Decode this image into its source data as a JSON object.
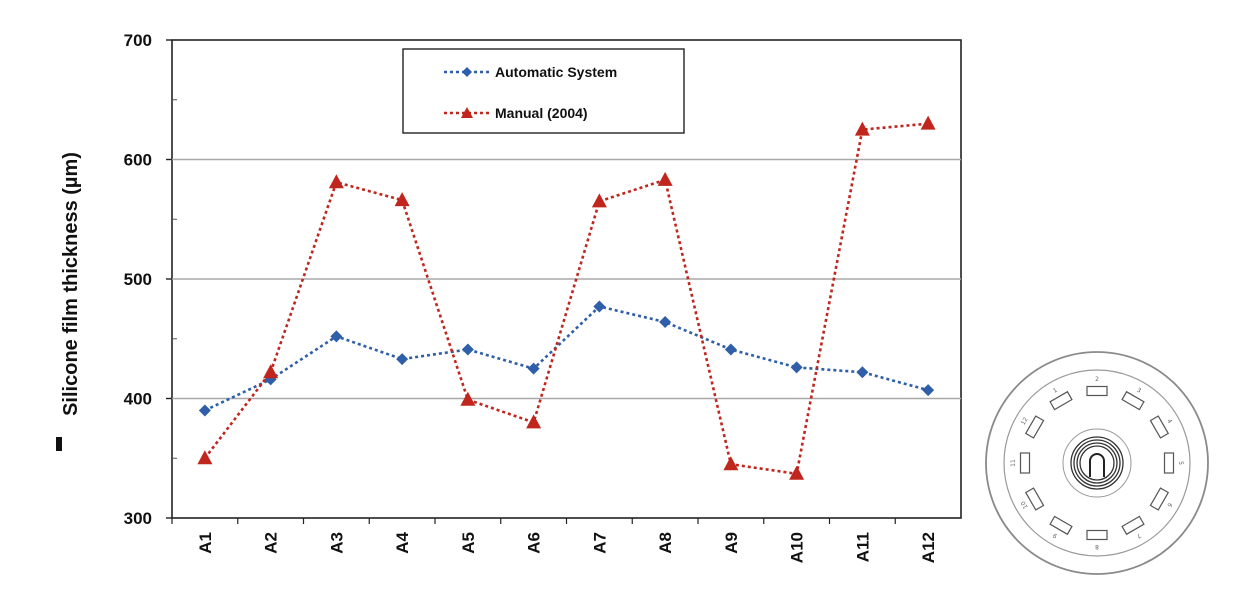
{
  "chart_data": {
    "type": "line",
    "ylabel": "Silicone film thickness (µm)",
    "xlabel": "",
    "ylim": [
      300,
      700
    ],
    "yticks": [
      300,
      400,
      500,
      600,
      700
    ],
    "categories": [
      "A1",
      "A2",
      "A3",
      "A4",
      "A5",
      "A6",
      "A7",
      "A8",
      "A9",
      "A10",
      "A11",
      "A12"
    ],
    "grid": true,
    "legend_position": "top-center",
    "series": [
      {
        "name": "Automatic System",
        "marker": "diamond",
        "line": "dotted",
        "color": "#2e5fa8",
        "values": [
          390,
          416,
          452,
          433,
          441,
          425,
          477,
          464,
          441,
          426,
          422,
          407
        ]
      },
      {
        "name": "Manual (2004)",
        "marker": "triangle",
        "line": "dotted",
        "color": "#c0261d",
        "values": [
          350,
          422,
          581,
          566,
          399,
          380,
          565,
          583,
          345,
          337,
          625,
          630
        ]
      }
    ]
  },
  "diagram": {
    "labels": [
      "1",
      "2",
      "3",
      "4",
      "5",
      "6",
      "7",
      "8",
      "9",
      "10",
      "11",
      "12"
    ]
  }
}
